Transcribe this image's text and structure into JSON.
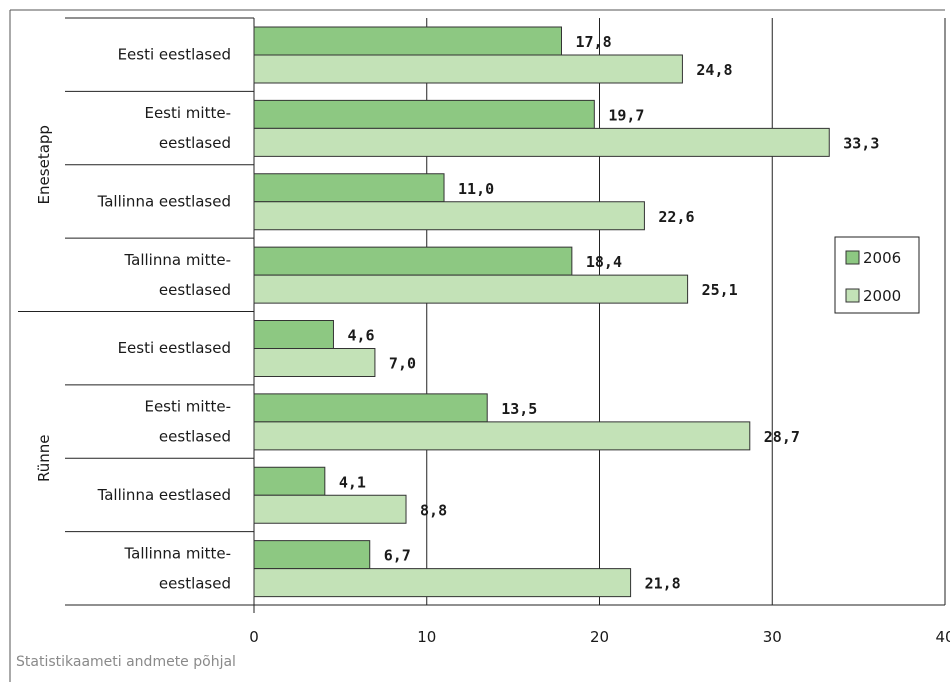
{
  "chart_data": {
    "type": "bar",
    "orientation": "horizontal",
    "groups": [
      {
        "name": "Enesetapp",
        "categories": [
          {
            "label": [
              "Eesti eestlased"
            ],
            "values": {
              "2006": 17.8,
              "2000": 24.8
            }
          },
          {
            "label": [
              "Eesti mitte-",
              "eestlased"
            ],
            "values": {
              "2006": 19.7,
              "2000": 33.3
            }
          },
          {
            "label": [
              "Tallinna eestlased"
            ],
            "values": {
              "2006": 11.0,
              "2000": 22.6
            }
          },
          {
            "label": [
              "Tallinna mitte-",
              "eestlased"
            ],
            "values": {
              "2006": 18.4,
              "2000": 25.1
            }
          }
        ]
      },
      {
        "name": "Rünne",
        "categories": [
          {
            "label": [
              "Eesti eestlased"
            ],
            "values": {
              "2006": 4.6,
              "2000": 7.0
            }
          },
          {
            "label": [
              "Eesti mitte-",
              "eestlased"
            ],
            "values": {
              "2006": 13.5,
              "2000": 28.7
            }
          },
          {
            "label": [
              "Tallinna eestlased"
            ],
            "values": {
              "2006": 4.1,
              "2000": 8.8
            }
          },
          {
            "label": [
              "Tallinna mitte-",
              "eestlased"
            ],
            "values": {
              "2006": 6.7,
              "2000": 21.8
            }
          }
        ]
      }
    ],
    "series": [
      {
        "name": "2006",
        "color": "#8dc882"
      },
      {
        "name": "2000",
        "color": "#c3e2b7"
      }
    ],
    "value_labels": {
      "2006": [
        "17,8",
        "19,7",
        "11,0",
        "18,4",
        "4,6",
        "13,5",
        "4,1",
        "6,7"
      ],
      "2000": [
        "24,8",
        "33,3",
        "22,6",
        "25,1",
        "7,0",
        "28,7",
        "8,8",
        "21,8"
      ]
    },
    "xlim": [
      0,
      40
    ],
    "xticks": [
      "0",
      "10",
      "20",
      "30",
      "40"
    ],
    "grid": true,
    "legend_position": "right"
  },
  "source_note": "Statistikaameti andmete põhjal"
}
